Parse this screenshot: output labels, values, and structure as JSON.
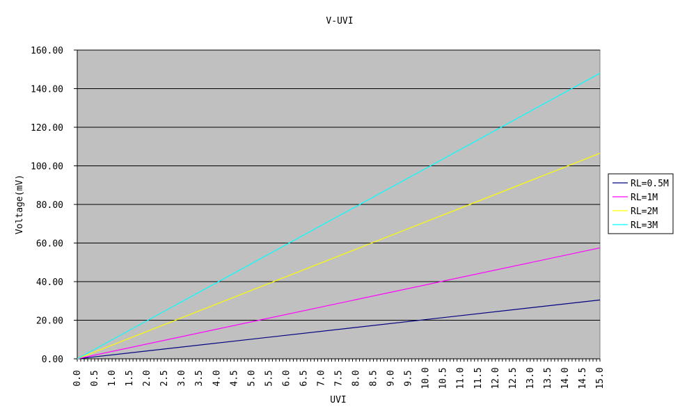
{
  "chart_data": {
    "type": "line",
    "title": "V-UVI",
    "xlabel": "UVI",
    "ylabel": "Voltage(mV)",
    "xlim": [
      0,
      15
    ],
    "ylim": [
      0,
      160
    ],
    "x_step": 0.1,
    "x_tick_labels": [
      "0.0",
      "0.5",
      "1.0",
      "1.5",
      "2.0",
      "2.5",
      "3.0",
      "3.5",
      "4.0",
      "4.5",
      "5.0",
      "5.5",
      "6.0",
      "6.5",
      "7.0",
      "7.5",
      "8.0",
      "8.5",
      "9.0",
      "9.5",
      "10.0",
      "10.5",
      "11.0",
      "11.5",
      "12.0",
      "12.5",
      "13.0",
      "13.5",
      "14.0",
      "14.5",
      "15.0"
    ],
    "x_tick_values": [
      0,
      0.5,
      1,
      1.5,
      2,
      2.5,
      3,
      3.5,
      4,
      4.5,
      5,
      5.5,
      6,
      6.5,
      7,
      7.5,
      8,
      8.5,
      9,
      9.5,
      10,
      10.5,
      11,
      11.5,
      12,
      12.5,
      13,
      13.5,
      14,
      14.5,
      15
    ],
    "y_tick_labels": [
      "0.00",
      "20.00",
      "40.00",
      "60.00",
      "80.00",
      "100.00",
      "120.00",
      "140.00",
      "160.00"
    ],
    "y_tick_values": [
      0,
      20,
      40,
      60,
      80,
      100,
      120,
      140,
      160
    ],
    "grid": "horizontal",
    "plot_background": "#c0c0c0",
    "legend_position": "right",
    "series": [
      {
        "name": "RL=0.5M",
        "color": "#000080",
        "x": [
          0,
          15
        ],
        "y": [
          0,
          30.5
        ]
      },
      {
        "name": "RL=1M",
        "color": "#ff00ff",
        "x": [
          0,
          15
        ],
        "y": [
          0,
          57.5
        ]
      },
      {
        "name": "RL=2M",
        "color": "#ffff00",
        "x": [
          0,
          15
        ],
        "y": [
          0,
          106.5
        ]
      },
      {
        "name": "RL=3M",
        "color": "#00ffff",
        "x": [
          0,
          15
        ],
        "y": [
          0,
          148
        ]
      }
    ]
  }
}
